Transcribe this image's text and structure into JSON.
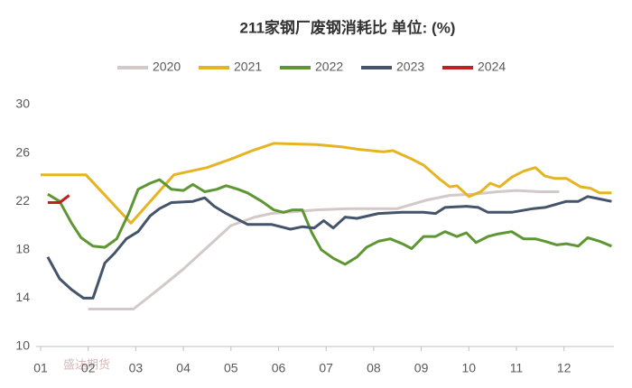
{
  "chart_data": {
    "type": "line",
    "title": "211家钢厂废钢消耗比  单位: (%)",
    "watermark": "盛达期货",
    "xlim": [
      1,
      13.05
    ],
    "ylim": [
      10,
      30
    ],
    "xticks": [
      {
        "value": 1,
        "label": "01"
      },
      {
        "value": 2,
        "label": "02"
      },
      {
        "value": 3,
        "label": "03"
      },
      {
        "value": 4,
        "label": "04"
      },
      {
        "value": 5,
        "label": "05"
      },
      {
        "value": 6,
        "label": "06"
      },
      {
        "value": 7,
        "label": "07"
      },
      {
        "value": 8,
        "label": "08"
      },
      {
        "value": 9,
        "label": "09"
      },
      {
        "value": 10,
        "label": "10"
      },
      {
        "value": 11,
        "label": "11"
      },
      {
        "value": 12,
        "label": "12"
      }
    ],
    "yticks": [
      10,
      14,
      18,
      22,
      26,
      30
    ],
    "grid": false,
    "legend": "top",
    "series": [
      {
        "name": "2020",
        "color": "#d3c9c9",
        "x": [
          2.0,
          2.5,
          2.95,
          3.5,
          4.0,
          4.5,
          5.0,
          5.5,
          5.85,
          6.8,
          7.5,
          8.5,
          9.1,
          9.6,
          10.1,
          10.6,
          11.0,
          11.5,
          11.9
        ],
        "values": [
          13.1,
          13.1,
          13.1,
          14.8,
          16.4,
          18.2,
          20.0,
          20.7,
          21.0,
          21.3,
          21.4,
          21.4,
          22.1,
          22.5,
          22.6,
          22.8,
          22.9,
          22.8,
          22.8
        ]
      },
      {
        "name": "2021",
        "color": "#e6b422",
        "x": [
          1.0,
          1.95,
          2.9,
          3.8,
          4.5,
          5.0,
          5.45,
          5.9,
          6.8,
          7.35,
          7.7,
          8.2,
          8.4,
          8.8,
          9.05,
          9.4,
          9.6,
          9.75,
          10.0,
          10.25,
          10.45,
          10.65,
          10.9,
          11.15,
          11.4,
          11.6,
          11.8,
          12.05,
          12.35,
          12.55,
          12.75,
          13.0
        ],
        "values": [
          24.2,
          24.2,
          20.2,
          24.2,
          24.8,
          25.5,
          26.2,
          26.8,
          26.7,
          26.5,
          26.3,
          26.1,
          26.2,
          25.5,
          25.0,
          23.8,
          23.2,
          23.3,
          22.4,
          22.8,
          23.5,
          23.2,
          24.0,
          24.5,
          24.8,
          24.1,
          23.9,
          23.9,
          23.2,
          23.1,
          22.7,
          22.7
        ]
      },
      {
        "name": "2022",
        "color": "#5d9632",
        "x": [
          1.15,
          1.4,
          1.65,
          1.85,
          2.1,
          2.35,
          2.6,
          2.85,
          3.05,
          3.3,
          3.5,
          3.75,
          4.0,
          4.2,
          4.45,
          4.7,
          4.9,
          5.15,
          5.35,
          5.65,
          5.9,
          6.1,
          6.3,
          6.5,
          6.7,
          6.9,
          7.15,
          7.4,
          7.65,
          7.85,
          8.1,
          8.35,
          8.6,
          8.8,
          9.05,
          9.3,
          9.5,
          9.75,
          9.95,
          10.15,
          10.4,
          10.6,
          10.9,
          11.15,
          11.4,
          11.6,
          11.85,
          12.05,
          12.3,
          12.5,
          12.75,
          13.0
        ],
        "values": [
          22.6,
          22.0,
          20.2,
          19.0,
          18.3,
          18.2,
          18.9,
          21.0,
          23.0,
          23.5,
          23.8,
          23.0,
          22.9,
          23.4,
          22.8,
          23.0,
          23.3,
          23.0,
          22.7,
          22.0,
          21.3,
          21.1,
          21.3,
          21.3,
          19.4,
          18.0,
          17.3,
          16.8,
          17.4,
          18.2,
          18.7,
          18.9,
          18.5,
          18.1,
          19.1,
          19.1,
          19.5,
          19.1,
          19.4,
          18.6,
          19.1,
          19.3,
          19.5,
          18.9,
          18.9,
          18.7,
          18.4,
          18.5,
          18.3,
          19.0,
          18.7,
          18.3
        ]
      },
      {
        "name": "2023",
        "color": "#44546a",
        "x": [
          1.15,
          1.4,
          1.65,
          1.9,
          2.1,
          2.35,
          2.55,
          2.8,
          3.05,
          3.3,
          3.5,
          3.75,
          4.2,
          4.45,
          4.65,
          4.9,
          5.1,
          5.35,
          5.85,
          6.25,
          6.5,
          6.75,
          6.95,
          7.15,
          7.4,
          7.65,
          8.1,
          8.6,
          9.05,
          9.3,
          9.5,
          9.95,
          10.2,
          10.4,
          10.9,
          11.35,
          11.6,
          12.05,
          12.3,
          12.5,
          12.75,
          13.0
        ],
        "values": [
          17.4,
          15.6,
          14.7,
          14.0,
          14.0,
          16.9,
          17.7,
          18.9,
          19.5,
          20.8,
          21.4,
          21.9,
          22.0,
          22.3,
          21.6,
          21.0,
          20.6,
          20.1,
          20.1,
          19.7,
          19.9,
          19.8,
          20.4,
          19.8,
          20.7,
          20.6,
          21.0,
          21.1,
          21.1,
          21.0,
          21.5,
          21.6,
          21.5,
          21.1,
          21.1,
          21.4,
          21.5,
          22.0,
          22.0,
          22.4,
          22.2,
          22.0
        ]
      },
      {
        "name": "2024",
        "color": "#c0201e",
        "x": [
          1.15,
          1.4,
          1.6
        ],
        "values": [
          21.9,
          21.9,
          22.5
        ]
      }
    ]
  }
}
